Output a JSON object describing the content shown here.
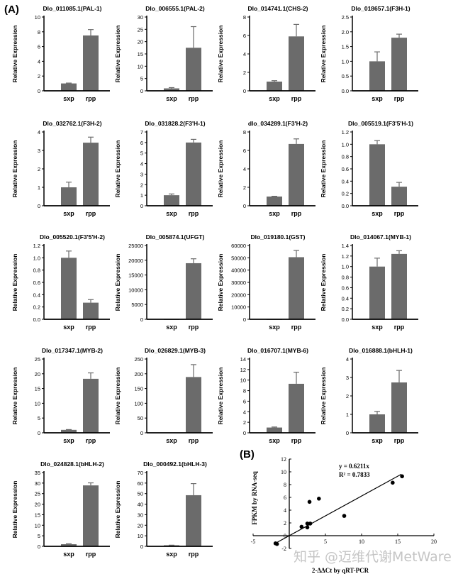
{
  "figure_labels": {
    "a": "(A)",
    "b": "(B)"
  },
  "watermark": "知乎 @迈维代谢MetWare",
  "colors": {
    "bar": "#6b6b6b",
    "axis": "#000000",
    "point": "#000000"
  },
  "chart_data": [
    {
      "type": "bar",
      "title": "Dlo_011085.1(PAL-1)",
      "ylabel": "Relative Expression",
      "categories": [
        "sxp",
        "rpp"
      ],
      "values": [
        1.0,
        7.5
      ],
      "errors": [
        0.05,
        0.8
      ],
      "ylim": [
        0,
        10
      ],
      "yticks": [
        "0",
        "2",
        "4",
        "6",
        "8",
        "10"
      ]
    },
    {
      "type": "bar",
      "title": "Dlo_006555.1(PAL-2)",
      "ylabel": "Relative Expression",
      "categories": [
        "sxp",
        "rpp"
      ],
      "values": [
        1.0,
        17.5
      ],
      "errors": [
        0.3,
        8.6
      ],
      "ylim": [
        0,
        30
      ],
      "yticks": [
        "0",
        "5",
        "10",
        "15",
        "20",
        "25",
        "30"
      ]
    },
    {
      "type": "bar",
      "title": "Dlo_014741.1(CHS-2)",
      "ylabel": "Relative Expression",
      "categories": [
        "sxp",
        "rpp"
      ],
      "values": [
        1.0,
        5.9
      ],
      "errors": [
        0.1,
        1.3
      ],
      "ylim": [
        0,
        8
      ],
      "yticks": [
        "0",
        "2",
        "4",
        "6",
        "8"
      ]
    },
    {
      "type": "bar",
      "title": "Dlo_018657.1(F3H-1)",
      "ylabel": "Relative Expression",
      "categories": [
        "sxp",
        "rpp"
      ],
      "values": [
        1.0,
        1.8
      ],
      "errors": [
        0.32,
        0.12
      ],
      "ylim": [
        0,
        2.5
      ],
      "yticks": [
        "0.0",
        "0.5",
        "1.0",
        "1.5",
        "2.0",
        "2.5"
      ]
    },
    {
      "type": "bar",
      "title": "Dlo_032762.1(F3H-2)",
      "ylabel": "Relative Expression",
      "categories": [
        "sxp",
        "rpp"
      ],
      "values": [
        1.0,
        3.42
      ],
      "errors": [
        0.28,
        0.3
      ],
      "ylim": [
        0,
        4
      ],
      "yticks": [
        "0",
        "1",
        "2",
        "3",
        "4"
      ]
    },
    {
      "type": "bar",
      "title": "Dlo_031828.2(F3'H-1)",
      "ylabel": "Relative Expression",
      "categories": [
        "sxp",
        "rpp"
      ],
      "values": [
        1.0,
        6.0
      ],
      "errors": [
        0.12,
        0.3
      ],
      "ylim": [
        0,
        7
      ],
      "yticks": [
        "0",
        "1",
        "2",
        "3",
        "4",
        "5",
        "6",
        "7"
      ]
    },
    {
      "type": "bar",
      "title": "dlo_034289.1(F3'H-2)",
      "ylabel": "Relative Expression",
      "categories": [
        "sxp",
        "rpp"
      ],
      "values": [
        1.0,
        6.7
      ],
      "errors": [
        0.03,
        0.55
      ],
      "ylim": [
        0,
        8
      ],
      "yticks": [
        "0",
        "2",
        "4",
        "6",
        "8"
      ]
    },
    {
      "type": "bar",
      "title": "Dlo_005519.1(F3'5'H-1)",
      "ylabel": "Relative Expression",
      "categories": [
        "sxp",
        "rpp"
      ],
      "values": [
        1.0,
        0.31
      ],
      "errors": [
        0.06,
        0.07
      ],
      "ylim": [
        0,
        1.2
      ],
      "yticks": [
        "0.0",
        "0.2",
        "0.4",
        "0.6",
        "0.8",
        "1.0",
        "1.2"
      ]
    },
    {
      "type": "bar",
      "title": "Dlo_005520.1(F3'5'H-2)",
      "ylabel": "Relative Expression",
      "categories": [
        "sxp",
        "rpp"
      ],
      "values": [
        1.0,
        0.27
      ],
      "errors": [
        0.11,
        0.05
      ],
      "ylim": [
        0,
        1.2
      ],
      "yticks": [
        "0.0",
        "0.2",
        "0.4",
        "0.6",
        "0.8",
        "1.0",
        "1.2"
      ]
    },
    {
      "type": "bar",
      "title": "Dlo_005874.1(UFGT)",
      "ylabel": "Relative Expression",
      "categories": [
        "sxp",
        "rpp"
      ],
      "values": [
        1,
        19000
      ],
      "errors": [
        0,
        1500
      ],
      "ylim": [
        0,
        25000
      ],
      "yticks": [
        "0",
        "5000",
        "10000",
        "15000",
        "20000",
        "25000"
      ]
    },
    {
      "type": "bar",
      "title": "Dlo_019180.1(GST)",
      "ylabel": "Relative Expression",
      "categories": [
        "sxp",
        "rpp"
      ],
      "values": [
        1,
        50500
      ],
      "errors": [
        0,
        5500
      ],
      "ylim": [
        0,
        60000
      ],
      "yticks": [
        "0",
        "10000",
        "20000",
        "30000",
        "40000",
        "50000",
        "60000"
      ]
    },
    {
      "type": "bar",
      "title": "Dlo_014067.1(MYB-1)",
      "ylabel": "Relative Expression",
      "categories": [
        "sxp",
        "rpp"
      ],
      "values": [
        1.0,
        1.24
      ],
      "errors": [
        0.16,
        0.06
      ],
      "ylim": [
        0,
        1.4
      ],
      "yticks": [
        "0.0",
        "0.2",
        "0.4",
        "0.6",
        "0.8",
        "1.0",
        "1.2",
        "1.4"
      ]
    },
    {
      "type": "bar",
      "title": "Dlo_017347.1(MYB-2)",
      "ylabel": "Relative Expression",
      "categories": [
        "sxp",
        "rpp"
      ],
      "values": [
        1.0,
        18.3
      ],
      "errors": [
        0.1,
        2.0
      ],
      "ylim": [
        0,
        25
      ],
      "yticks": [
        "0",
        "5",
        "10",
        "15",
        "20",
        "25"
      ]
    },
    {
      "type": "bar",
      "title": "Dlo_026829.1(MYB-3)",
      "ylabel": "Relative Expression",
      "categories": [
        "sxp",
        "rpp"
      ],
      "values": [
        1,
        189
      ],
      "errors": [
        0,
        42
      ],
      "ylim": [
        0,
        250
      ],
      "yticks": [
        "0",
        "50",
        "100",
        "150",
        "200",
        "250"
      ]
    },
    {
      "type": "bar",
      "title": "Dlo_016707.1(MYB-6)",
      "ylabel": "Relative Expression",
      "categories": [
        "sxp",
        "rpp"
      ],
      "values": [
        1.0,
        9.3
      ],
      "errors": [
        0.1,
        2.2
      ],
      "ylim": [
        0,
        14
      ],
      "yticks": [
        "0",
        "2",
        "4",
        "6",
        "8",
        "10",
        "12",
        "14"
      ]
    },
    {
      "type": "bar",
      "title": "Dlo_016888.1(bHLH-1)",
      "ylabel": "Relative Expression",
      "categories": [
        "sxp",
        "rpp"
      ],
      "values": [
        1.0,
        2.73
      ],
      "errors": [
        0.16,
        0.65
      ],
      "ylim": [
        0,
        4
      ],
      "yticks": [
        "0",
        "1",
        "2",
        "3",
        "4"
      ]
    },
    {
      "type": "bar",
      "title": "Dlo_024828.1(bHLH-2)",
      "ylabel": "Relative Expression",
      "categories": [
        "sxp",
        "rpp"
      ],
      "values": [
        1.0,
        28.9
      ],
      "errors": [
        0.2,
        1.2
      ],
      "ylim": [
        0,
        35
      ],
      "yticks": [
        "0",
        "5",
        "10",
        "15",
        "20",
        "25",
        "30",
        "35"
      ]
    },
    {
      "type": "bar",
      "title": "Dlo_000492.1(bHLH-3)",
      "ylabel": "Relative Expression",
      "categories": [
        "sxp",
        "rpp"
      ],
      "values": [
        1.0,
        48.5
      ],
      "errors": [
        0.1,
        11
      ],
      "ylim": [
        0,
        70
      ],
      "yticks": [
        "0",
        "10",
        "20",
        "30",
        "40",
        "50",
        "60",
        "70"
      ]
    },
    {
      "type": "scatter",
      "xlabel": "2-ΔΔCt by qRT-PCR",
      "ylabel": "FPKM by RNA-seq",
      "xlim": [
        -5,
        20
      ],
      "ylim": [
        -2,
        12
      ],
      "xticks": [
        "-5",
        "0",
        "5",
        "10",
        "15",
        "20"
      ],
      "yticks": [
        "-2",
        "0",
        "2",
        "4",
        "6",
        "8",
        "10",
        "12"
      ],
      "equation": "y = 0.6211x",
      "r2": "R² = 0.7833",
      "trendline_slope": 0.6211,
      "points": [
        [
          -1.9,
          -1.2
        ],
        [
          -1.7,
          -1.3
        ],
        [
          1.7,
          1.4
        ],
        [
          2.5,
          1.3
        ],
        [
          2.5,
          1.9
        ],
        [
          2.8,
          5.3
        ],
        [
          2.9,
          1.9
        ],
        [
          4.1,
          5.8
        ],
        [
          7.6,
          3.1
        ],
        [
          14.3,
          8.3
        ],
        [
          15.6,
          9.3
        ]
      ]
    }
  ]
}
